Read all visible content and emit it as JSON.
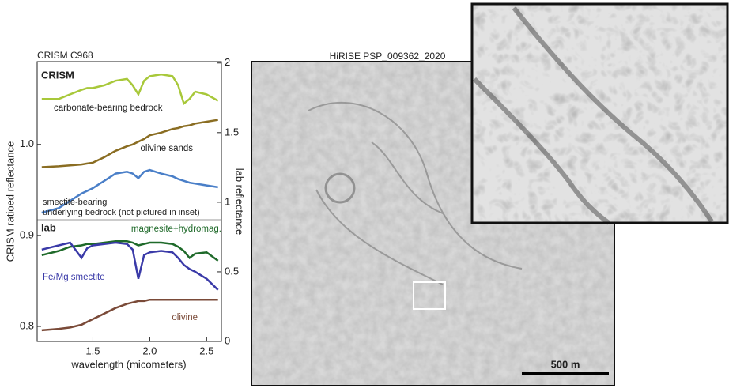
{
  "chart_data": {
    "type": "line",
    "title": "CRISM C968",
    "x_label": "wavelength (micometers)",
    "y_label": "CRISM ratioed reflectance",
    "y2_label": "lab reflectance",
    "xlim": [
      1.01,
      2.63
    ],
    "ylim": [
      0.7835,
      1.091
    ],
    "y2lim": [
      0,
      2.01
    ],
    "xticks": [
      1.5,
      {
        "value": 2,
        "label": "2.0"
      },
      2.5
    ],
    "yticks": [
      0.8,
      0.9,
      {
        "value": 1,
        "label": "1.0"
      }
    ],
    "y2ticks": [
      0,
      0.5,
      1,
      1.5,
      2
    ],
    "group_labels": [
      "CRISM",
      "lab"
    ],
    "x": [
      1.05,
      1.2,
      1.3,
      1.4,
      1.45,
      1.5,
      1.6,
      1.7,
      1.8,
      1.85,
      1.9,
      1.95,
      2.0,
      2.1,
      2.2,
      2.25,
      2.3,
      2.35,
      2.4,
      2.5,
      2.6
    ],
    "series": [
      {
        "name": "carbonate-bearing bedrock",
        "color": "#a8c83a",
        "values": [
          1.05,
          1.05,
          1.055,
          1.06,
          1.062,
          1.062,
          1.065,
          1.07,
          1.072,
          1.065,
          1.055,
          1.07,
          1.075,
          1.077,
          1.075,
          1.065,
          1.045,
          1.05,
          1.058,
          1.055,
          1.048
        ]
      },
      {
        "name": "olivine sands",
        "color": "#8a6d22",
        "values": [
          0.975,
          0.976,
          0.977,
          0.978,
          0.979,
          0.98,
          0.986,
          0.993,
          0.998,
          1.0,
          1.003,
          1.006,
          1.01,
          1.013,
          1.017,
          1.018,
          1.02,
          1.021,
          1.023,
          1.025,
          1.027
        ]
      },
      {
        "name": "smectite-bearing underlying bedrock (not pictured in inset)",
        "color": "#4a7fc8",
        "values": [
          0.925,
          0.93,
          0.938,
          0.946,
          0.949,
          0.952,
          0.96,
          0.968,
          0.97,
          0.968,
          0.963,
          0.97,
          0.972,
          0.968,
          0.965,
          0.962,
          0.96,
          0.958,
          0.957,
          0.955,
          0.953
        ]
      },
      {
        "name": "magnesite+hydromag.",
        "color": "#1f6a2a",
        "axis": "y2",
        "values": [
          0.62,
          0.65,
          0.68,
          0.69,
          0.7,
          0.7,
          0.71,
          0.72,
          0.72,
          0.71,
          0.69,
          0.7,
          0.71,
          0.71,
          0.7,
          0.68,
          0.65,
          0.6,
          0.63,
          0.64,
          0.58
        ]
      },
      {
        "name": "Fe/Mg smectite",
        "color": "#3a3aa8",
        "axis": "y2",
        "values": [
          0.66,
          0.69,
          0.71,
          0.6,
          0.67,
          0.69,
          0.7,
          0.71,
          0.7,
          0.66,
          0.45,
          0.62,
          0.64,
          0.65,
          0.64,
          0.6,
          0.55,
          0.52,
          0.5,
          0.45,
          0.37
        ]
      },
      {
        "name": "olivine",
        "color": "#7a4a38",
        "axis": "y2",
        "values": [
          0.08,
          0.09,
          0.1,
          0.12,
          0.14,
          0.16,
          0.2,
          0.24,
          0.27,
          0.28,
          0.29,
          0.29,
          0.3,
          0.3,
          0.3,
          0.3,
          0.3,
          0.3,
          0.3,
          0.3,
          0.3
        ]
      }
    ]
  },
  "image": {
    "title": "HiRISE PSP_009362_2020",
    "scale_bar": "500 m"
  }
}
